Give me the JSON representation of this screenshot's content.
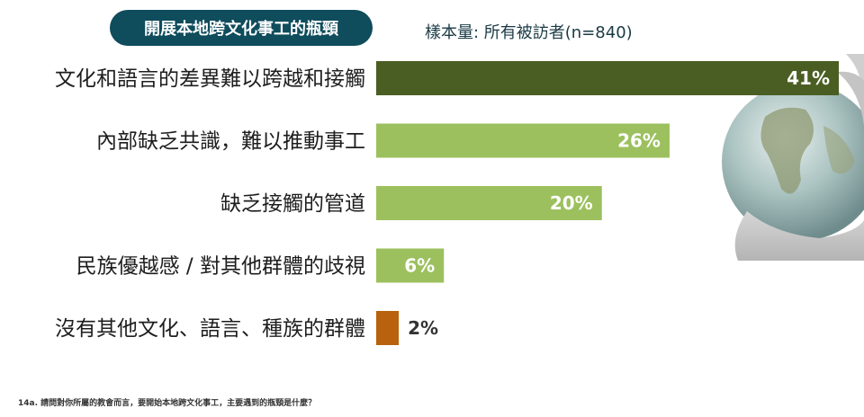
{
  "header": {
    "title": "開展本地跨文化事工的瓶頸",
    "sample": "樣本量: 所有被訪者(n=840)"
  },
  "footnote": "14a. 請問對你所屬的教會而言，要開始本地跨文化事工，主要遇到的瓶頸是什麼？",
  "colors": {
    "dark_green": "#4a5e23",
    "light_green": "#9cc05e",
    "orange": "#b8620d",
    "title_bg": "#0f4c5c"
  },
  "chart_data": {
    "type": "bar",
    "orientation": "horizontal",
    "unit": "%",
    "categories": [
      "文化和語言的差異難以跨越和接觸",
      "內部缺乏共識，難以推動事工",
      "缺乏接觸的管道",
      "民族優越感 / 對其他群體的歧視",
      "沒有其他文化、語言、種族的群體"
    ],
    "values": [
      41,
      26,
      20,
      6,
      2
    ],
    "value_labels": [
      "41%",
      "26%",
      "20%",
      "6%",
      "2%"
    ],
    "bar_colors": [
      "#4a5e23",
      "#9cc05e",
      "#9cc05e",
      "#9cc05e",
      "#b8620d"
    ],
    "xlim": [
      0,
      41
    ],
    "grid": false,
    "legend": "none"
  }
}
